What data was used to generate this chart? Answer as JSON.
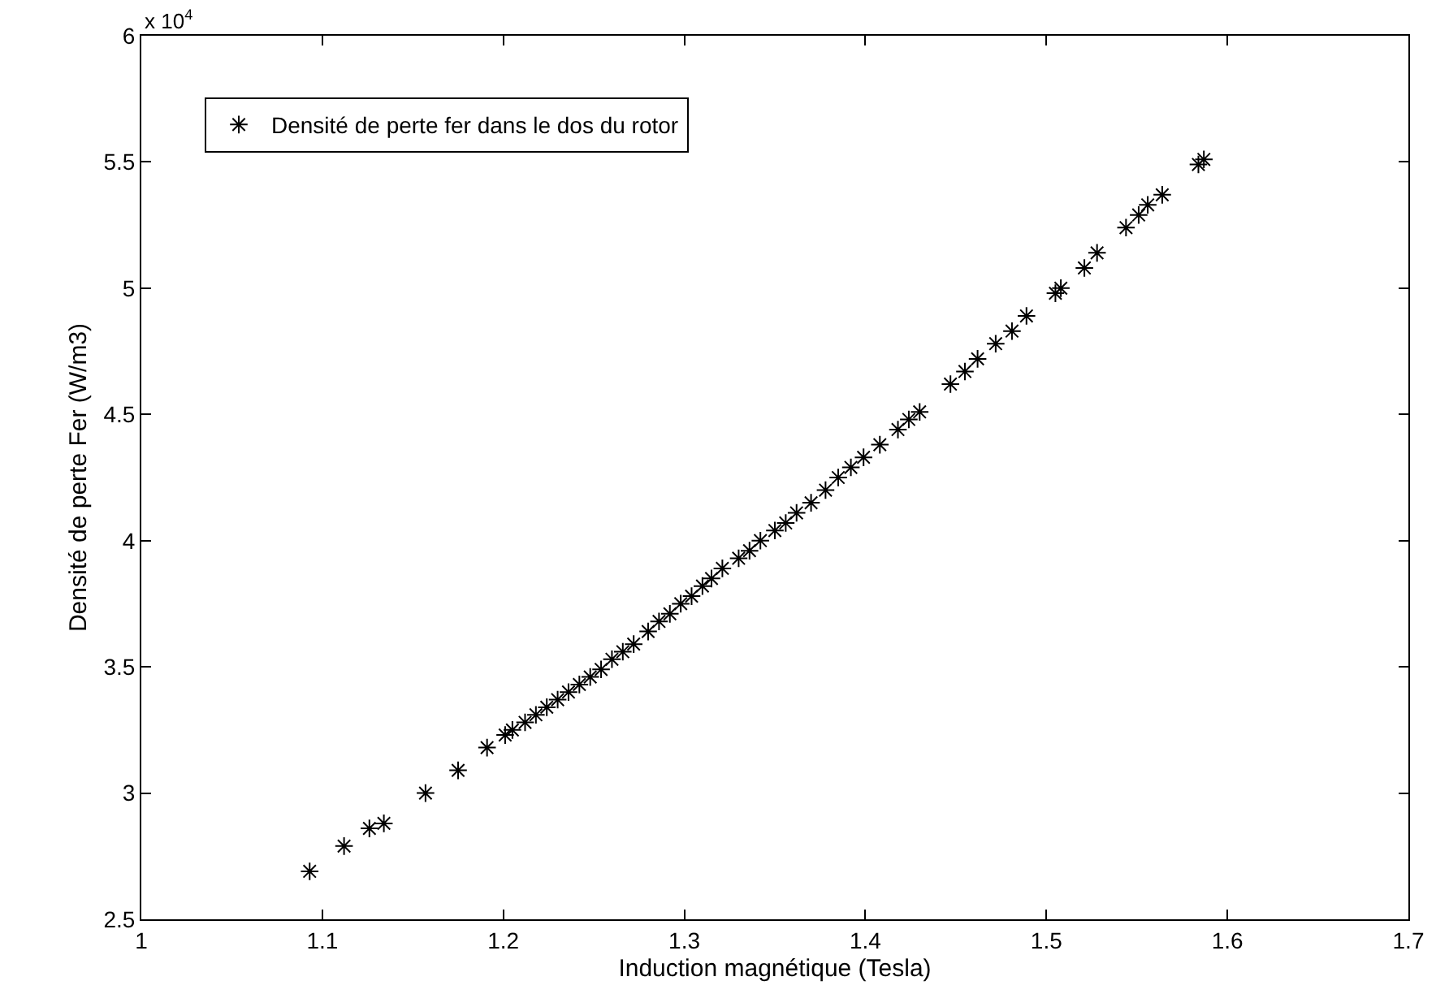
{
  "chart_data": {
    "type": "scatter",
    "xlabel": "Induction magnétique (Tesla)",
    "ylabel": "Densité de perte Fer (W/m3)",
    "annotations": [
      "x 10$^{4}$"
    ],
    "xlim": [
      1,
      1.7
    ],
    "xticks": [
      1,
      1.1,
      1.2,
      1.3,
      1.4,
      1.5,
      1.6,
      1.7
    ],
    "ylim": [
      2.5,
      6
    ],
    "yticks": [
      2.5,
      3,
      3.5,
      4,
      4.5,
      5,
      5.5,
      6
    ],
    "legend": "top left",
    "marker": "cross",
    "series": [
      {
        "name": "Densité de perte fer dans le dos du rotor",
        "color": "#000000",
        "x": [
          1.093,
          1.112,
          1.126,
          1.134,
          1.157,
          1.175,
          1.191,
          1.201,
          1.205,
          1.212,
          1.218,
          1.224,
          1.23,
          1.236,
          1.242,
          1.248,
          1.254,
          1.26,
          1.266,
          1.272,
          1.28,
          1.286,
          1.292,
          1.298,
          1.304,
          1.31,
          1.315,
          1.321,
          1.33,
          1.336,
          1.342,
          1.35,
          1.356,
          1.362,
          1.37,
          1.378,
          1.385,
          1.392,
          1.399,
          1.408,
          1.418,
          1.424,
          1.43,
          1.447,
          1.455,
          1.462,
          1.472,
          1.481,
          1.489,
          1.505,
          1.508,
          1.521,
          1.528,
          1.544,
          1.551,
          1.556,
          1.564,
          1.584,
          1.587
        ],
        "values": [
          2.69,
          2.79,
          2.86,
          2.88,
          3.0,
          3.09,
          3.18,
          3.23,
          3.25,
          3.28,
          3.31,
          3.34,
          3.37,
          3.4,
          3.43,
          3.46,
          3.49,
          3.53,
          3.56,
          3.59,
          3.64,
          3.68,
          3.71,
          3.75,
          3.78,
          3.82,
          3.85,
          3.89,
          3.93,
          3.96,
          4.0,
          4.04,
          4.07,
          4.11,
          4.15,
          4.2,
          4.25,
          4.29,
          4.33,
          4.38,
          4.44,
          4.48,
          4.51,
          4.62,
          4.67,
          4.72,
          4.78,
          4.83,
          4.89,
          4.98,
          5.0,
          5.08,
          5.14,
          5.24,
          5.29,
          5.33,
          5.37,
          5.49,
          5.51
        ]
      }
    ]
  }
}
